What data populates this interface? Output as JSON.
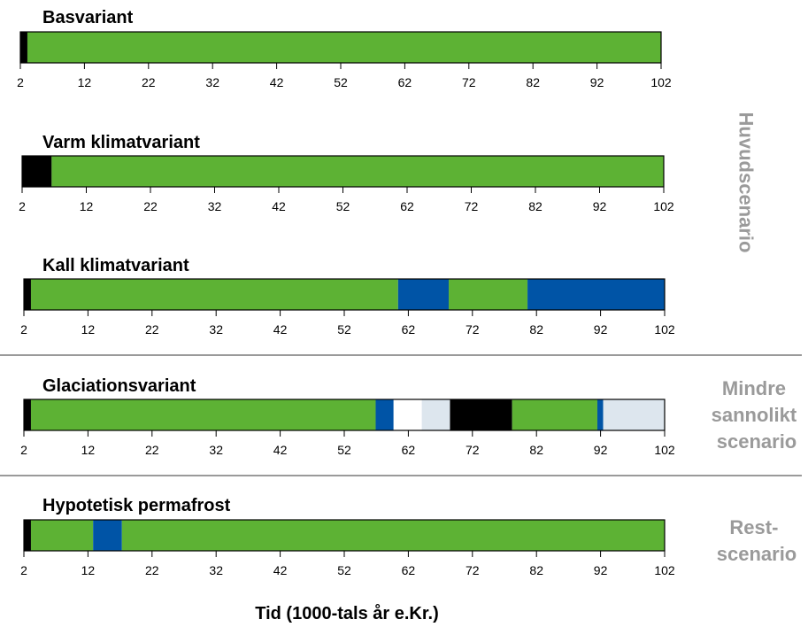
{
  "chart_data": {
    "type": "bar",
    "xlabel": "Tid (1000-tals år e.Kr.)",
    "xlim": [
      2,
      102
    ],
    "ticks": [
      "2",
      "12",
      "22",
      "32",
      "42",
      "52",
      "62",
      "72",
      "82",
      "92",
      "102"
    ],
    "legend": null,
    "colors": {
      "black": "#000000",
      "green": "#5db234",
      "blue": "#0054a6",
      "white": "#ffffff",
      "lightblue": "#dde6ee"
    },
    "variants": [
      {
        "title": "Basvariant",
        "segments": [
          {
            "from": 2,
            "to": 3.1,
            "color": "black"
          },
          {
            "from": 3.1,
            "to": 102,
            "color": "green"
          }
        ]
      },
      {
        "title": "Varm klimatvariant",
        "segments": [
          {
            "from": 2,
            "to": 6.6,
            "color": "black"
          },
          {
            "from": 6.6,
            "to": 102,
            "color": "green"
          }
        ]
      },
      {
        "title": "Kall klimatvariant",
        "segments": [
          {
            "from": 2,
            "to": 3.1,
            "color": "black"
          },
          {
            "from": 3.1,
            "to": 60.4,
            "color": "green"
          },
          {
            "from": 60.4,
            "to": 68.3,
            "color": "blue"
          },
          {
            "from": 68.3,
            "to": 80.6,
            "color": "green"
          },
          {
            "from": 80.6,
            "to": 102,
            "color": "blue"
          }
        ]
      },
      {
        "title": "Glaciationsvariant",
        "segments": [
          {
            "from": 2,
            "to": 3.1,
            "color": "black"
          },
          {
            "from": 3.1,
            "to": 56.9,
            "color": "green"
          },
          {
            "from": 56.9,
            "to": 59.7,
            "color": "blue"
          },
          {
            "from": 59.7,
            "to": 64.1,
            "color": "white"
          },
          {
            "from": 64.1,
            "to": 68.5,
            "color": "lightblue"
          },
          {
            "from": 68.5,
            "to": 78.2,
            "color": "black"
          },
          {
            "from": 78.2,
            "to": 91.5,
            "color": "green"
          },
          {
            "from": 91.5,
            "to": 92.4,
            "color": "blue"
          },
          {
            "from": 92.4,
            "to": 102,
            "color": "lightblue"
          }
        ]
      },
      {
        "title": "Hypotetisk permafrost",
        "segments": [
          {
            "from": 2,
            "to": 3.1,
            "color": "black"
          },
          {
            "from": 3.1,
            "to": 12.8,
            "color": "green"
          },
          {
            "from": 12.8,
            "to": 17.3,
            "color": "blue"
          },
          {
            "from": 17.3,
            "to": 102,
            "color": "green"
          }
        ]
      }
    ],
    "groups": [
      {
        "lines": [
          "Huvudscenario"
        ]
      },
      {
        "lines": [
          "Mindre",
          "sannolikt",
          "scenario"
        ]
      },
      {
        "lines": [
          "Rest-",
          "scenario"
        ]
      }
    ]
  }
}
